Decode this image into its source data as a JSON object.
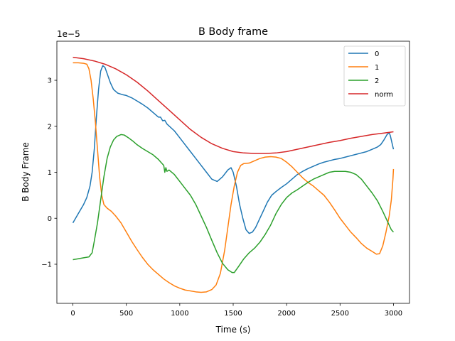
{
  "chart_data": {
    "type": "line",
    "title": "B Body frame",
    "xlabel": "Time (s)",
    "ylabel": "B Body Frame",
    "offset_label": "1e−5",
    "xlim": [
      -150,
      3150
    ],
    "ylim": [
      -1.85,
      3.85
    ],
    "xticks": [
      0,
      500,
      1000,
      1500,
      2000,
      2500,
      3000
    ],
    "xtick_labels": [
      "0",
      "500",
      "1000",
      "1500",
      "2000",
      "2500",
      "3000"
    ],
    "yticks": [
      -1,
      0,
      1,
      2,
      3
    ],
    "ytick_labels": [
      "−1",
      "0",
      "1",
      "2",
      "3"
    ],
    "grid": false,
    "legend": "upper right",
    "series": [
      {
        "name": "0",
        "color": "#1f77b4",
        "points": [
          [
            0,
            -0.1
          ],
          [
            50,
            0.1
          ],
          [
            100,
            0.3
          ],
          [
            130,
            0.45
          ],
          [
            160,
            0.7
          ],
          [
            180,
            1.0
          ],
          [
            200,
            1.5
          ],
          [
            220,
            2.2
          ],
          [
            240,
            2.8
          ],
          [
            260,
            3.2
          ],
          [
            280,
            3.32
          ],
          [
            300,
            3.28
          ],
          [
            320,
            3.15
          ],
          [
            350,
            2.95
          ],
          [
            380,
            2.8
          ],
          [
            420,
            2.72
          ],
          [
            460,
            2.69
          ],
          [
            500,
            2.67
          ],
          [
            550,
            2.62
          ],
          [
            600,
            2.55
          ],
          [
            650,
            2.48
          ],
          [
            700,
            2.4
          ],
          [
            750,
            2.3
          ],
          [
            800,
            2.2
          ],
          [
            820,
            2.2
          ],
          [
            840,
            2.12
          ],
          [
            860,
            2.13
          ],
          [
            880,
            2.05
          ],
          [
            950,
            1.9
          ],
          [
            1000,
            1.75
          ],
          [
            1050,
            1.6
          ],
          [
            1100,
            1.45
          ],
          [
            1150,
            1.3
          ],
          [
            1200,
            1.15
          ],
          [
            1250,
            1.0
          ],
          [
            1300,
            0.85
          ],
          [
            1350,
            0.8
          ],
          [
            1400,
            0.9
          ],
          [
            1450,
            1.05
          ],
          [
            1480,
            1.1
          ],
          [
            1500,
            1.0
          ],
          [
            1530,
            0.7
          ],
          [
            1560,
            0.3
          ],
          [
            1590,
            0.0
          ],
          [
            1620,
            -0.25
          ],
          [
            1650,
            -0.33
          ],
          [
            1680,
            -0.3
          ],
          [
            1710,
            -0.2
          ],
          [
            1740,
            -0.05
          ],
          [
            1780,
            0.15
          ],
          [
            1820,
            0.35
          ],
          [
            1860,
            0.5
          ],
          [
            1900,
            0.58
          ],
          [
            1950,
            0.67
          ],
          [
            2000,
            0.75
          ],
          [
            2050,
            0.85
          ],
          [
            2100,
            0.95
          ],
          [
            2150,
            1.02
          ],
          [
            2200,
            1.08
          ],
          [
            2250,
            1.13
          ],
          [
            2300,
            1.18
          ],
          [
            2350,
            1.22
          ],
          [
            2400,
            1.25
          ],
          [
            2450,
            1.28
          ],
          [
            2500,
            1.3
          ],
          [
            2550,
            1.33
          ],
          [
            2600,
            1.36
          ],
          [
            2650,
            1.39
          ],
          [
            2700,
            1.42
          ],
          [
            2750,
            1.45
          ],
          [
            2800,
            1.5
          ],
          [
            2850,
            1.55
          ],
          [
            2880,
            1.6
          ],
          [
            2910,
            1.7
          ],
          [
            2940,
            1.82
          ],
          [
            2960,
            1.86
          ],
          [
            2970,
            1.8
          ],
          [
            2985,
            1.65
          ],
          [
            3000,
            1.5
          ]
        ]
      },
      {
        "name": "1",
        "color": "#ff7f0e",
        "points": [
          [
            0,
            3.38
          ],
          [
            50,
            3.38
          ],
          [
            100,
            3.37
          ],
          [
            130,
            3.35
          ],
          [
            150,
            3.25
          ],
          [
            170,
            3.0
          ],
          [
            190,
            2.6
          ],
          [
            210,
            2.1
          ],
          [
            230,
            1.5
          ],
          [
            250,
            0.9
          ],
          [
            270,
            0.5
          ],
          [
            290,
            0.3
          ],
          [
            320,
            0.22
          ],
          [
            360,
            0.15
          ],
          [
            400,
            0.05
          ],
          [
            450,
            -0.1
          ],
          [
            500,
            -0.3
          ],
          [
            550,
            -0.5
          ],
          [
            600,
            -0.68
          ],
          [
            650,
            -0.85
          ],
          [
            700,
            -1.0
          ],
          [
            750,
            -1.12
          ],
          [
            800,
            -1.22
          ],
          [
            850,
            -1.32
          ],
          [
            900,
            -1.4
          ],
          [
            950,
            -1.47
          ],
          [
            1000,
            -1.52
          ],
          [
            1050,
            -1.56
          ],
          [
            1100,
            -1.58
          ],
          [
            1150,
            -1.6
          ],
          [
            1200,
            -1.61
          ],
          [
            1250,
            -1.6
          ],
          [
            1300,
            -1.55
          ],
          [
            1340,
            -1.45
          ],
          [
            1380,
            -1.2
          ],
          [
            1420,
            -0.7
          ],
          [
            1450,
            -0.2
          ],
          [
            1480,
            0.3
          ],
          [
            1510,
            0.7
          ],
          [
            1540,
            1.0
          ],
          [
            1570,
            1.15
          ],
          [
            1600,
            1.19
          ],
          [
            1650,
            1.2
          ],
          [
            1700,
            1.25
          ],
          [
            1750,
            1.3
          ],
          [
            1800,
            1.33
          ],
          [
            1850,
            1.34
          ],
          [
            1900,
            1.33
          ],
          [
            1950,
            1.3
          ],
          [
            2000,
            1.22
          ],
          [
            2050,
            1.12
          ],
          [
            2100,
            1.0
          ],
          [
            2150,
            0.88
          ],
          [
            2200,
            0.78
          ],
          [
            2250,
            0.7
          ],
          [
            2300,
            0.6
          ],
          [
            2350,
            0.5
          ],
          [
            2400,
            0.35
          ],
          [
            2450,
            0.18
          ],
          [
            2500,
            0.0
          ],
          [
            2550,
            -0.15
          ],
          [
            2600,
            -0.3
          ],
          [
            2650,
            -0.42
          ],
          [
            2700,
            -0.55
          ],
          [
            2750,
            -0.65
          ],
          [
            2800,
            -0.72
          ],
          [
            2840,
            -0.78
          ],
          [
            2870,
            -0.77
          ],
          [
            2900,
            -0.6
          ],
          [
            2930,
            -0.3
          ],
          [
            2960,
            0.05
          ],
          [
            2980,
            0.4
          ],
          [
            2995,
            0.85
          ],
          [
            3000,
            1.07
          ]
        ]
      },
      {
        "name": "2",
        "color": "#2ca02c",
        "points": [
          [
            0,
            -0.9
          ],
          [
            50,
            -0.88
          ],
          [
            100,
            -0.86
          ],
          [
            150,
            -0.84
          ],
          [
            180,
            -0.75
          ],
          [
            200,
            -0.5
          ],
          [
            230,
            -0.1
          ],
          [
            260,
            0.4
          ],
          [
            290,
            0.9
          ],
          [
            320,
            1.3
          ],
          [
            350,
            1.55
          ],
          [
            380,
            1.7
          ],
          [
            410,
            1.78
          ],
          [
            450,
            1.82
          ],
          [
            480,
            1.81
          ],
          [
            520,
            1.75
          ],
          [
            560,
            1.68
          ],
          [
            600,
            1.6
          ],
          [
            650,
            1.52
          ],
          [
            700,
            1.45
          ],
          [
            750,
            1.38
          ],
          [
            800,
            1.28
          ],
          [
            830,
            1.2
          ],
          [
            850,
            1.15
          ],
          [
            860,
            1.0
          ],
          [
            870,
            1.1
          ],
          [
            880,
            1.02
          ],
          [
            900,
            1.05
          ],
          [
            950,
            0.95
          ],
          [
            1000,
            0.8
          ],
          [
            1050,
            0.65
          ],
          [
            1100,
            0.5
          ],
          [
            1150,
            0.3
          ],
          [
            1200,
            0.05
          ],
          [
            1250,
            -0.2
          ],
          [
            1300,
            -0.48
          ],
          [
            1350,
            -0.75
          ],
          [
            1400,
            -0.98
          ],
          [
            1450,
            -1.12
          ],
          [
            1490,
            -1.18
          ],
          [
            1510,
            -1.18
          ],
          [
            1550,
            -1.05
          ],
          [
            1600,
            -0.88
          ],
          [
            1650,
            -0.75
          ],
          [
            1700,
            -0.65
          ],
          [
            1750,
            -0.52
          ],
          [
            1800,
            -0.35
          ],
          [
            1850,
            -0.15
          ],
          [
            1900,
            0.1
          ],
          [
            1950,
            0.3
          ],
          [
            2000,
            0.45
          ],
          [
            2050,
            0.55
          ],
          [
            2100,
            0.62
          ],
          [
            2150,
            0.7
          ],
          [
            2200,
            0.78
          ],
          [
            2250,
            0.85
          ],
          [
            2300,
            0.9
          ],
          [
            2350,
            0.95
          ],
          [
            2400,
            1.0
          ],
          [
            2450,
            1.02
          ],
          [
            2500,
            1.02
          ],
          [
            2550,
            1.02
          ],
          [
            2600,
            1.0
          ],
          [
            2650,
            0.95
          ],
          [
            2700,
            0.85
          ],
          [
            2750,
            0.7
          ],
          [
            2800,
            0.55
          ],
          [
            2850,
            0.38
          ],
          [
            2900,
            0.15
          ],
          [
            2950,
            -0.1
          ],
          [
            2980,
            -0.25
          ],
          [
            3000,
            -0.3
          ]
        ]
      },
      {
        "name": "norm",
        "color": "#d62728",
        "points": [
          [
            0,
            3.5
          ],
          [
            100,
            3.47
          ],
          [
            200,
            3.42
          ],
          [
            300,
            3.35
          ],
          [
            400,
            3.25
          ],
          [
            500,
            3.12
          ],
          [
            600,
            2.96
          ],
          [
            700,
            2.77
          ],
          [
            800,
            2.56
          ],
          [
            900,
            2.35
          ],
          [
            1000,
            2.14
          ],
          [
            1100,
            1.93
          ],
          [
            1200,
            1.76
          ],
          [
            1300,
            1.62
          ],
          [
            1400,
            1.52
          ],
          [
            1500,
            1.45
          ],
          [
            1600,
            1.42
          ],
          [
            1700,
            1.41
          ],
          [
            1800,
            1.41
          ],
          [
            1900,
            1.42
          ],
          [
            2000,
            1.45
          ],
          [
            2100,
            1.5
          ],
          [
            2200,
            1.55
          ],
          [
            2300,
            1.6
          ],
          [
            2400,
            1.65
          ],
          [
            2500,
            1.69
          ],
          [
            2600,
            1.74
          ],
          [
            2700,
            1.78
          ],
          [
            2800,
            1.82
          ],
          [
            2900,
            1.85
          ],
          [
            3000,
            1.88
          ]
        ]
      }
    ]
  }
}
